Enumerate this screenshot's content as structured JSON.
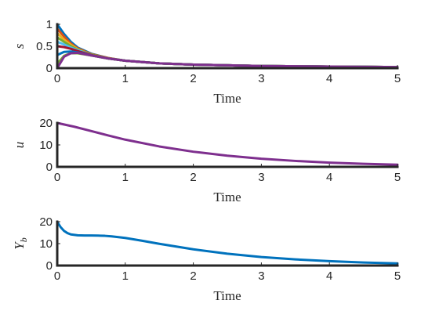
{
  "chart_data": [
    {
      "type": "line",
      "ylabel": "s",
      "xlabel": "Time",
      "xlim": [
        0,
        5
      ],
      "ylim": [
        0,
        1
      ],
      "xticks": [
        "0",
        "1",
        "2",
        "3",
        "4",
        "5"
      ],
      "yticks": [
        "0",
        "0.5",
        "1"
      ],
      "grid": false,
      "series": [
        {
          "color": "#0072BD",
          "x": [
            0,
            0.1,
            0.2,
            0.3,
            0.5,
            0.75,
            1,
            1.5,
            2,
            3,
            4,
            5
          ],
          "y": [
            1.0,
            0.78,
            0.6,
            0.47,
            0.33,
            0.23,
            0.17,
            0.11,
            0.08,
            0.05,
            0.035,
            0.025
          ]
        },
        {
          "color": "#D95319",
          "x": [
            0,
            0.1,
            0.2,
            0.3,
            0.5,
            0.75,
            1,
            1.5,
            2,
            3,
            4,
            5
          ],
          "y": [
            0.9,
            0.72,
            0.56,
            0.45,
            0.32,
            0.23,
            0.17,
            0.11,
            0.08,
            0.05,
            0.035,
            0.025
          ]
        },
        {
          "color": "#EDB120",
          "x": [
            0,
            0.1,
            0.2,
            0.3,
            0.5,
            0.75,
            1,
            1.5,
            2,
            3,
            4,
            5
          ],
          "y": [
            0.8,
            0.65,
            0.53,
            0.43,
            0.31,
            0.22,
            0.17,
            0.11,
            0.08,
            0.05,
            0.035,
            0.025
          ]
        },
        {
          "color": "#77AC30",
          "x": [
            0,
            0.1,
            0.2,
            0.3,
            0.5,
            0.75,
            1,
            1.5,
            2,
            3,
            4,
            5
          ],
          "y": [
            0.7,
            0.6,
            0.5,
            0.42,
            0.31,
            0.22,
            0.17,
            0.11,
            0.08,
            0.05,
            0.035,
            0.025
          ]
        },
        {
          "color": "#4DBEEE",
          "x": [
            0,
            0.1,
            0.2,
            0.3,
            0.5,
            0.75,
            1,
            1.5,
            2,
            3,
            4,
            5
          ],
          "y": [
            0.6,
            0.54,
            0.47,
            0.41,
            0.3,
            0.22,
            0.17,
            0.11,
            0.08,
            0.05,
            0.035,
            0.025
          ]
        },
        {
          "color": "#A2142F",
          "x": [
            0,
            0.1,
            0.2,
            0.3,
            0.5,
            0.75,
            1,
            1.5,
            2,
            3,
            4,
            5
          ],
          "y": [
            0.5,
            0.48,
            0.44,
            0.39,
            0.3,
            0.22,
            0.17,
            0.11,
            0.08,
            0.05,
            0.035,
            0.025
          ]
        },
        {
          "color": "#0072BD",
          "x": [
            0,
            0.1,
            0.2,
            0.3,
            0.5,
            0.75,
            1,
            1.5,
            2,
            3,
            4,
            5
          ],
          "y": [
            0.3,
            0.37,
            0.38,
            0.36,
            0.29,
            0.22,
            0.17,
            0.11,
            0.08,
            0.05,
            0.035,
            0.025
          ]
        },
        {
          "color": "#77AC30",
          "x": [
            0,
            0.1,
            0.2,
            0.3,
            0.5,
            0.75,
            1,
            1.5,
            2,
            3,
            4,
            5
          ],
          "y": [
            0.1,
            0.28,
            0.34,
            0.34,
            0.29,
            0.22,
            0.17,
            0.11,
            0.08,
            0.05,
            0.035,
            0.025
          ]
        },
        {
          "color": "#7E2F8E",
          "x": [
            0,
            0.1,
            0.2,
            0.3,
            0.5,
            0.75,
            1,
            1.5,
            2,
            3,
            4,
            5
          ],
          "y": [
            0.0,
            0.26,
            0.34,
            0.35,
            0.29,
            0.22,
            0.17,
            0.11,
            0.08,
            0.05,
            0.035,
            0.025
          ]
        }
      ]
    },
    {
      "type": "line",
      "ylabel": "u",
      "xlabel": "Time",
      "xlim": [
        0,
        5
      ],
      "ylim": [
        0,
        20
      ],
      "xticks": [
        "0",
        "1",
        "2",
        "3",
        "4",
        "5"
      ],
      "yticks": [
        "0",
        "10",
        "20"
      ],
      "grid": false,
      "series": [
        {
          "color": "#7E2F8E",
          "x": [
            0,
            0.25,
            0.5,
            0.75,
            1,
            1.5,
            2,
            2.5,
            3,
            3.5,
            4,
            4.5,
            5
          ],
          "y": [
            20,
            18.3,
            16.3,
            14.3,
            12.4,
            9.3,
            6.9,
            5.1,
            3.7,
            2.7,
            1.9,
            1.4,
            1.0
          ]
        }
      ]
    },
    {
      "type": "line",
      "ylabel": "Y",
      "ylabel_sub": "b",
      "xlabel": "Time",
      "xlim": [
        0,
        5
      ],
      "ylim": [
        0,
        20
      ],
      "xticks": [
        "0",
        "1",
        "2",
        "3",
        "4",
        "5"
      ],
      "yticks": [
        "0",
        "10",
        "20"
      ],
      "grid": false,
      "series": [
        {
          "color": "#0072BD",
          "x": [
            0,
            0.05,
            0.1,
            0.15,
            0.2,
            0.3,
            0.4,
            0.5,
            0.6,
            0.7,
            0.8,
            1,
            1.25,
            1.5,
            2,
            2.5,
            3,
            3.5,
            4,
            4.5,
            5
          ],
          "y": [
            20,
            17.5,
            15.8,
            14.8,
            14.2,
            13.8,
            13.7,
            13.7,
            13.65,
            13.55,
            13.3,
            12.6,
            11.3,
            9.9,
            7.4,
            5.4,
            3.9,
            2.8,
            2.0,
            1.4,
            1.0
          ]
        }
      ]
    }
  ]
}
